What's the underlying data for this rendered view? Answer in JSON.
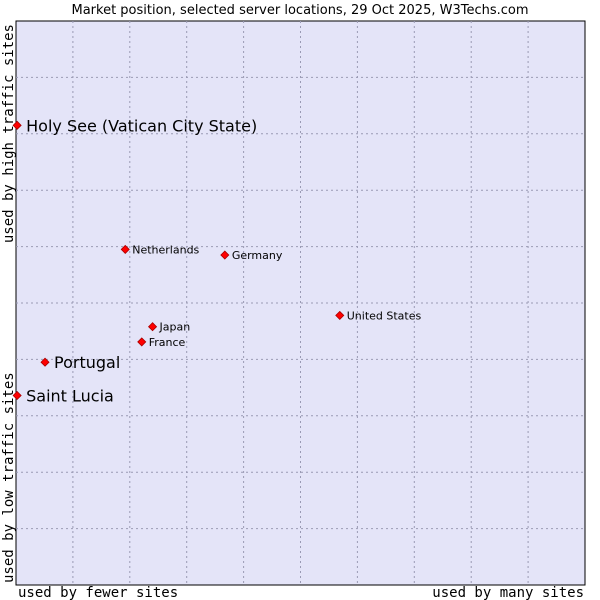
{
  "chart_data": {
    "type": "scatter",
    "title": "Market position, selected server locations, 29 Oct 2025, W3Techs.com",
    "xlabel_low": "used by fewer sites",
    "xlabel_high": "used by many sites",
    "ylabel_low": "used by low traffic sites",
    "ylabel_high": "used by high traffic sites",
    "xlim": [
      0,
      100
    ],
    "ylim": [
      0,
      100
    ],
    "grid": true,
    "points": [
      {
        "label": "Holy See (Vatican City State)",
        "x": 0.2,
        "y": 81.5,
        "highlight": true
      },
      {
        "label": "Netherlands",
        "x": 19.2,
        "y": 59.5,
        "highlight": false
      },
      {
        "label": "Germany",
        "x": 36.7,
        "y": 58.5,
        "highlight": false
      },
      {
        "label": "United States",
        "x": 56.9,
        "y": 47.8,
        "highlight": false
      },
      {
        "label": "Japan",
        "x": 24.0,
        "y": 45.8,
        "highlight": false
      },
      {
        "label": "France",
        "x": 22.1,
        "y": 43.1,
        "highlight": false
      },
      {
        "label": "Portugal",
        "x": 5.1,
        "y": 39.5,
        "highlight": true
      },
      {
        "label": "Saint Lucia",
        "x": 0.2,
        "y": 33.6,
        "highlight": true
      }
    ]
  },
  "colors": {
    "plot_background": "#e4e4f8",
    "marker": "#ff0000",
    "marker_outline": "#aa0000"
  }
}
